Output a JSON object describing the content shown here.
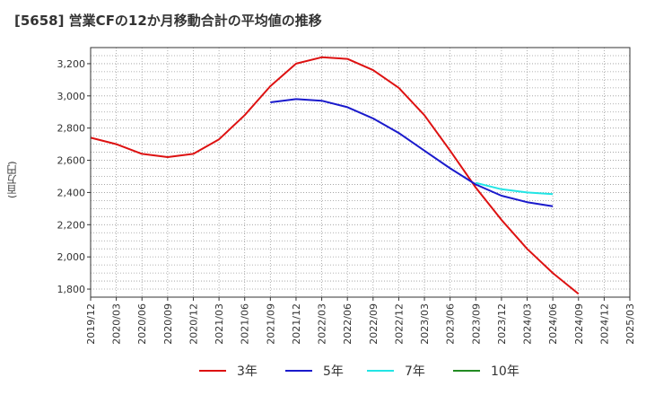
{
  "chart_data": {
    "type": "line",
    "title": "[5658]  営業CFの12か月移動合計の平均値の推移",
    "ylabel": "(百万円)",
    "xlabel": "",
    "grid": true,
    "legend": "bottom",
    "ylim": [
      1750,
      3300
    ],
    "yticks": [
      1800,
      2000,
      2200,
      2400,
      2600,
      2800,
      3000,
      3200
    ],
    "ytick_labels": [
      "1,800",
      "2,000",
      "2,200",
      "2,400",
      "2,600",
      "2,800",
      "3,000",
      "3,200"
    ],
    "xticks": [
      "2019/12",
      "2020/03",
      "2020/06",
      "2020/09",
      "2020/12",
      "2021/03",
      "2021/06",
      "2021/09",
      "2021/12",
      "2022/03",
      "2022/06",
      "2022/09",
      "2022/12",
      "2023/03",
      "2023/06",
      "2023/09",
      "2023/12",
      "2024/03",
      "2024/06",
      "2024/09",
      "2024/12",
      "2025/03"
    ],
    "series": [
      {
        "name": "3年",
        "color": "#dd1111",
        "points": [
          [
            "2019/12",
            2740
          ],
          [
            "2020/03",
            2700
          ],
          [
            "2020/06",
            2640
          ],
          [
            "2020/09",
            2620
          ],
          [
            "2020/12",
            2640
          ],
          [
            "2021/03",
            2730
          ],
          [
            "2021/06",
            2880
          ],
          [
            "2021/09",
            3060
          ],
          [
            "2021/12",
            3200
          ],
          [
            "2022/03",
            3240
          ],
          [
            "2022/06",
            3230
          ],
          [
            "2022/09",
            3160
          ],
          [
            "2022/12",
            3050
          ],
          [
            "2023/03",
            2880
          ],
          [
            "2023/06",
            2660
          ],
          [
            "2023/09",
            2430
          ],
          [
            "2023/12",
            2230
          ],
          [
            "2024/03",
            2050
          ],
          [
            "2024/06",
            1900
          ],
          [
            "2024/09",
            1770
          ]
        ]
      },
      {
        "name": "5年",
        "color": "#1a1acc",
        "points": [
          [
            "2021/09",
            2960
          ],
          [
            "2021/12",
            2980
          ],
          [
            "2022/03",
            2970
          ],
          [
            "2022/06",
            2930
          ],
          [
            "2022/09",
            2860
          ],
          [
            "2022/12",
            2770
          ],
          [
            "2023/03",
            2660
          ],
          [
            "2023/06",
            2550
          ],
          [
            "2023/09",
            2450
          ],
          [
            "2023/12",
            2380
          ],
          [
            "2024/03",
            2340
          ],
          [
            "2024/06",
            2315
          ]
        ]
      },
      {
        "name": "7年",
        "color": "#22e5e5",
        "points": [
          [
            "2023/09",
            2460
          ],
          [
            "2023/12",
            2420
          ],
          [
            "2024/03",
            2400
          ],
          [
            "2024/06",
            2390
          ]
        ]
      },
      {
        "name": "10年",
        "color": "#228b22",
        "points": []
      }
    ]
  }
}
